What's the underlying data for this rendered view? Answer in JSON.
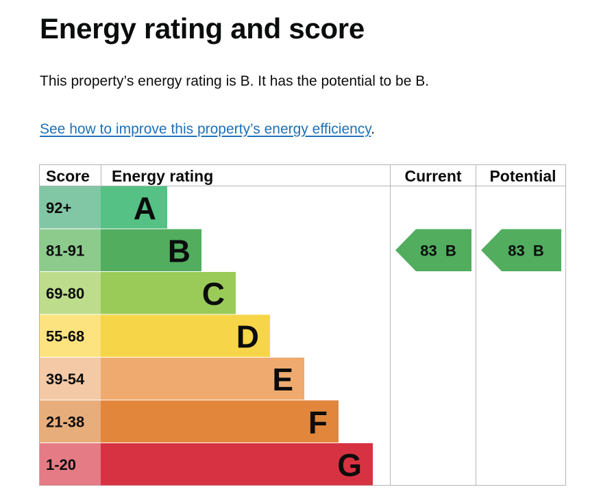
{
  "page": {
    "title": "Energy rating and score",
    "summary": "This property’s energy rating is B. It has the potential to be B.",
    "link_text": "See how to improve this property’s energy efficiency",
    "link_suffix": "."
  },
  "chart_data": {
    "type": "table",
    "columns": [
      "Score",
      "Energy rating",
      "Current",
      "Potential"
    ],
    "bands": [
      {
        "letter": "A",
        "range": "92+",
        "color": "#55c184",
        "score_color": "#82c7a5"
      },
      {
        "letter": "B",
        "range": "81-91",
        "color": "#52ad5f",
        "score_color": "#8ccb8c"
      },
      {
        "letter": "C",
        "range": "69-80",
        "color": "#9acb59",
        "score_color": "#bddd8c"
      },
      {
        "letter": "D",
        "range": "55-68",
        "color": "#f7d548",
        "score_color": "#fce37f"
      },
      {
        "letter": "E",
        "range": "39-54",
        "color": "#efab6f",
        "score_color": "#f4c9a6"
      },
      {
        "letter": "F",
        "range": "21-38",
        "color": "#e1863b",
        "score_color": "#e7ad7b"
      },
      {
        "letter": "G",
        "range": "1-20",
        "color": "#d73242",
        "score_color": "#e47b85"
      }
    ],
    "current": {
      "score": 83,
      "letter": "B",
      "label": "83  B",
      "band_index": 1,
      "color": "#52ad5f"
    },
    "potential": {
      "score": 83,
      "letter": "B",
      "label": "83  B",
      "band_index": 1,
      "color": "#52ad5f"
    }
  }
}
